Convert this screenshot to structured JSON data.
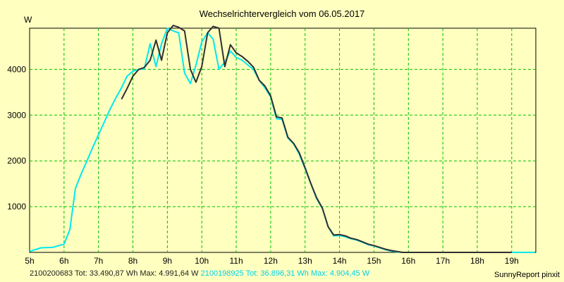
{
  "chart_data": {
    "type": "line",
    "title": "Wechselrichtervergleich vom 06.05.2017",
    "ylabel": "W",
    "xlabel": "",
    "xlim": [
      5,
      19.7
    ],
    "ylim": [
      0,
      4900
    ],
    "y_ticks": [
      1000,
      2000,
      3000,
      4000
    ],
    "x_ticks": [
      {
        "x": 5,
        "label": "5h"
      },
      {
        "x": 6,
        "label": "6h"
      },
      {
        "x": 7,
        "label": "7h"
      },
      {
        "x": 8,
        "label": "8h"
      },
      {
        "x": 9,
        "label": "9h"
      },
      {
        "x": 10,
        "label": "10h"
      },
      {
        "x": 11,
        "label": "11h"
      },
      {
        "x": 12,
        "label": "12h"
      },
      {
        "x": 13,
        "label": "13h"
      },
      {
        "x": 14,
        "label": "14h"
      },
      {
        "x": 15,
        "label": "15h"
      },
      {
        "x": 16,
        "label": "16h"
      },
      {
        "x": 17,
        "label": "17h"
      },
      {
        "x": 18,
        "label": "18h"
      },
      {
        "x": 19,
        "label": "19h"
      }
    ],
    "grid": true,
    "series": [
      {
        "name": "2100198925",
        "color": "#00e8f0",
        "x": [
          5.0,
          5.33,
          5.67,
          6.0,
          6.17,
          6.33,
          6.5,
          6.67,
          6.83,
          7.0,
          7.17,
          7.33,
          7.5,
          7.67,
          7.83,
          8.0,
          8.17,
          8.33,
          8.5,
          8.67,
          8.83,
          9.0,
          9.17,
          9.33,
          9.5,
          9.67,
          9.83,
          10.0,
          10.17,
          10.33,
          10.5,
          10.67,
          10.83,
          11.0,
          11.17,
          11.33,
          11.5,
          11.67,
          11.83,
          12.0,
          12.17,
          12.33,
          12.5,
          12.67,
          12.83,
          13.0,
          13.17,
          13.33,
          13.5,
          13.67,
          13.83,
          14.0,
          14.17,
          14.33,
          14.5,
          14.67,
          14.83,
          15.0,
          15.17,
          15.33,
          15.5,
          15.67,
          15.83,
          16.0,
          16.17,
          16.33,
          16.5,
          16.67,
          16.83,
          17.0,
          17.17,
          17.33,
          17.5,
          17.67,
          17.83,
          18.0,
          18.17,
          18.33,
          18.5,
          18.67,
          18.83,
          19.0,
          19.17,
          19.33,
          19.5,
          19.67
        ],
        "values": [
          20,
          100,
          110,
          180,
          500,
          1400,
          1720,
          2010,
          2290,
          2570,
          2850,
          3120,
          3370,
          3600,
          3850,
          3960,
          4000,
          4010,
          4560,
          4060,
          4560,
          4900,
          4840,
          4800,
          3920,
          3690,
          4090,
          4600,
          4800,
          4660,
          4000,
          4160,
          4400,
          4260,
          4200,
          4100,
          4000,
          3760,
          3600,
          3400,
          2920,
          2910,
          2500,
          2370,
          2150,
          1830,
          1490,
          1180,
          960,
          560,
          360,
          370,
          340,
          300,
          270,
          220,
          170,
          140,
          100,
          60,
          30,
          10,
          0,
          0,
          0,
          0,
          0,
          0,
          0,
          0,
          0,
          0,
          0,
          0,
          0,
          0,
          0,
          0,
          0,
          0,
          0,
          0,
          0,
          0,
          0,
          0
        ]
      },
      {
        "name": "2100200683",
        "color": "#303030",
        "x": [
          7.67,
          7.83,
          8.0,
          8.17,
          8.33,
          8.5,
          8.67,
          8.83,
          9.0,
          9.17,
          9.33,
          9.5,
          9.67,
          9.83,
          10.0,
          10.17,
          10.33,
          10.5,
          10.67,
          10.83,
          11.0,
          11.17,
          11.33,
          11.5,
          11.67,
          11.83,
          12.0,
          12.17,
          12.33,
          12.5,
          12.67,
          12.83,
          13.0,
          13.17,
          13.33,
          13.5,
          13.67,
          13.83,
          14.0,
          14.17,
          14.33,
          14.5,
          14.67,
          14.83,
          15.0,
          15.17,
          15.33,
          15.5,
          15.67,
          15.83,
          16.0,
          16.17,
          16.33,
          16.5,
          16.67,
          16.83,
          17.0,
          17.17,
          17.33,
          17.5,
          17.67,
          17.83,
          18.0,
          18.17,
          18.33,
          18.5,
          18.67,
          18.83,
          19.0
        ],
        "values": [
          3350,
          3580,
          3850,
          4000,
          4040,
          4200,
          4640,
          4200,
          4800,
          4960,
          4920,
          4840,
          4000,
          3720,
          4060,
          4800,
          4940,
          4900,
          4060,
          4540,
          4360,
          4280,
          4180,
          4050,
          3760,
          3640,
          3420,
          2960,
          2940,
          2520,
          2380,
          2180,
          1850,
          1500,
          1200,
          970,
          560,
          380,
          390,
          360,
          310,
          280,
          230,
          180,
          150,
          110,
          70,
          40,
          20,
          0,
          0,
          0,
          0,
          0,
          0,
          0,
          0,
          0,
          0,
          0,
          0,
          0,
          0,
          0,
          0,
          0,
          0,
          0,
          0
        ]
      }
    ]
  },
  "footer": {
    "series1_text": "2100200683 Tot: 33.490,87 Wh Max: 4.991,64 W",
    "series2_text": "2100198925 Tot: 36.896,31 Wh Max: 4.904,45 W",
    "brand": "SunnyReport pinxit"
  }
}
